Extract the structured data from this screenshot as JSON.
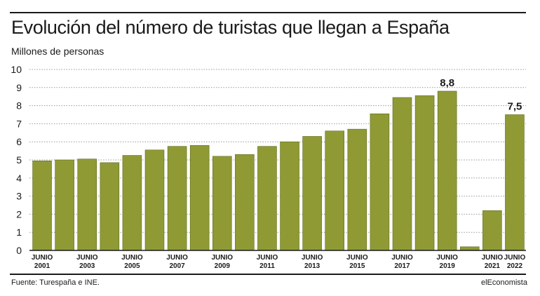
{
  "header": {
    "title": "Evolución del número de turistas que llegan a España",
    "subtitle": "Millones de personas"
  },
  "footer": {
    "source": "Fuente: Turespaña e INE.",
    "brand": "elEconomista"
  },
  "colors": {
    "bar": "#8f9a35",
    "bar_border": "#5f6a1c",
    "grid": "#9a9a9a",
    "text": "#1a1a1a"
  },
  "chart_data": {
    "type": "bar",
    "title": "Evolución del número de turistas que llegan a España",
    "ylabel": "Millones de personas",
    "ylim": [
      0,
      10
    ],
    "yticks": [
      "0",
      "1",
      "2",
      "3",
      "4",
      "5",
      "6",
      "7",
      "8",
      "9",
      "10"
    ],
    "grid": true,
    "categories": [
      "2001",
      "2002",
      "2003",
      "2004",
      "2005",
      "2006",
      "2007",
      "2008",
      "2009",
      "2010",
      "2011",
      "2012",
      "2013",
      "2014",
      "2015",
      "2016",
      "2017",
      "2018",
      "2019",
      "2020",
      "2021",
      "2022"
    ],
    "values": [
      4.95,
      5.0,
      5.05,
      4.85,
      5.25,
      5.55,
      5.75,
      5.8,
      5.2,
      5.3,
      5.75,
      6.0,
      6.3,
      6.6,
      6.7,
      7.55,
      8.45,
      8.55,
      8.8,
      0.2,
      2.2,
      7.5
    ],
    "x_labels": [
      {
        "index": 0,
        "line1": "JUNIO",
        "line2": "2001"
      },
      {
        "index": 2,
        "line1": "JUNIO",
        "line2": "2003"
      },
      {
        "index": 4,
        "line1": "JUNIO",
        "line2": "2005"
      },
      {
        "index": 6,
        "line1": "JUNIO",
        "line2": "2007"
      },
      {
        "index": 8,
        "line1": "JUNIO",
        "line2": "2009"
      },
      {
        "index": 10,
        "line1": "JUNIO",
        "line2": "2011"
      },
      {
        "index": 12,
        "line1": "JUNIO",
        "line2": "2013"
      },
      {
        "index": 14,
        "line1": "JUNIO",
        "line2": "2015"
      },
      {
        "index": 16,
        "line1": "JUNIO",
        "line2": "2017"
      },
      {
        "index": 18,
        "line1": "JUNIO",
        "line2": "2019"
      },
      {
        "index": 20,
        "line1": "JUNIO",
        "line2": "2021"
      },
      {
        "index": 21,
        "line1": "JUNIO",
        "line2": "2022"
      }
    ],
    "data_labels": [
      {
        "index": 18,
        "text": "8,8"
      },
      {
        "index": 21,
        "text": "7,5"
      }
    ]
  }
}
